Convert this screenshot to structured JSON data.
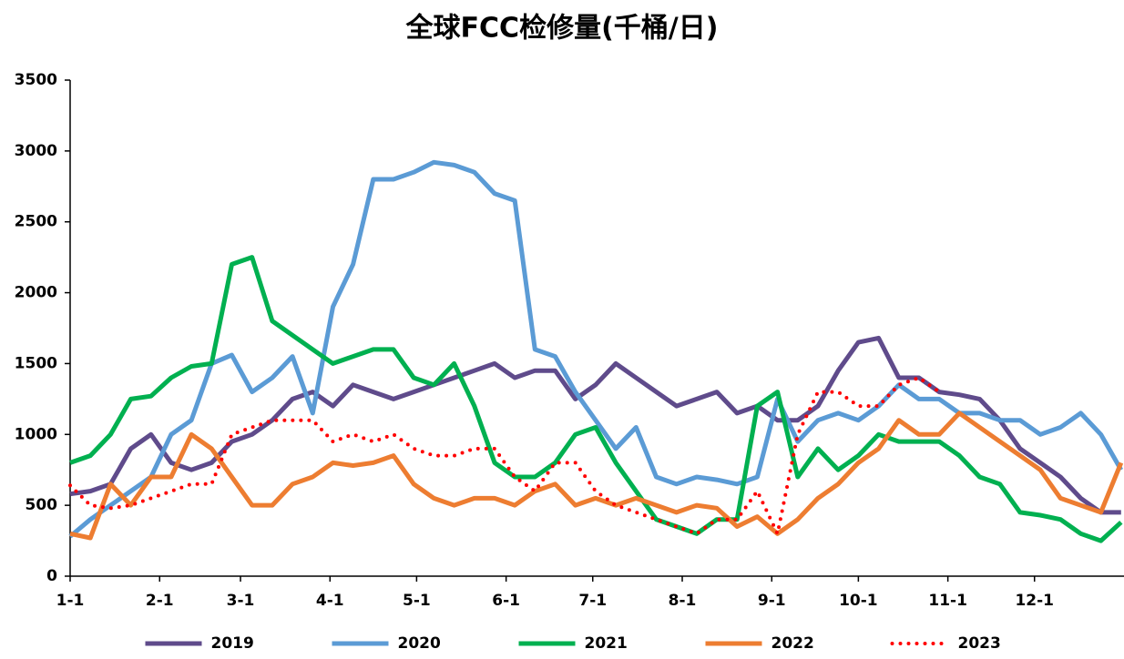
{
  "chart_data": {
    "type": "line",
    "title": "全球FCC检修量(千桶/日)",
    "x": [
      0,
      7,
      14,
      21,
      28,
      35,
      42,
      49,
      56,
      63,
      70,
      77,
      84,
      91,
      98,
      105,
      112,
      119,
      126,
      133,
      140,
      147,
      154,
      161,
      168,
      175,
      182,
      189,
      196,
      203,
      210,
      217,
      224,
      231,
      238,
      245,
      252,
      259,
      266,
      273,
      280,
      287,
      294,
      301,
      308,
      315,
      322,
      329,
      336,
      343,
      350,
      357,
      364
    ],
    "xlim": [
      0,
      365
    ],
    "xticks": [
      {
        "value": 0,
        "label": "1-1"
      },
      {
        "value": 31,
        "label": "2-1"
      },
      {
        "value": 59,
        "label": "3-1"
      },
      {
        "value": 90,
        "label": "4-1"
      },
      {
        "value": 120,
        "label": "5-1"
      },
      {
        "value": 151,
        "label": "6-1"
      },
      {
        "value": 181,
        "label": "7-1"
      },
      {
        "value": 212,
        "label": "8-1"
      },
      {
        "value": 243,
        "label": "9-1"
      },
      {
        "value": 273,
        "label": "10-1"
      },
      {
        "value": 304,
        "label": "11-1"
      },
      {
        "value": 334,
        "label": "12-1"
      }
    ],
    "ylim": [
      0,
      3500
    ],
    "yticks": [
      0,
      500,
      1000,
      1500,
      2000,
      2500,
      3000,
      3500
    ],
    "legend": "bottom",
    "series": [
      {
        "name": "2019",
        "color": "#5f4b8b",
        "style": "solid",
        "values": [
          580,
          600,
          650,
          900,
          1000,
          800,
          750,
          800,
          950,
          1000,
          1100,
          1250,
          1300,
          1200,
          1350,
          1300,
          1250,
          1300,
          1350,
          1400,
          1450,
          1500,
          1400,
          1450,
          1450,
          1250,
          1350,
          1500,
          1400,
          1300,
          1200,
          1250,
          1300,
          1150,
          1200,
          1100,
          1100,
          1200,
          1450,
          1650,
          1680,
          1400,
          1400,
          1300,
          1280,
          1250,
          1100,
          900,
          800,
          700,
          550,
          450,
          450
        ]
      },
      {
        "name": "2020",
        "color": "#5b9bd5",
        "style": "solid",
        "values": [
          280,
          400,
          500,
          600,
          700,
          1000,
          1100,
          1500,
          1560,
          1300,
          1400,
          1550,
          1150,
          1900,
          2200,
          2800,
          2800,
          2850,
          2920,
          2900,
          2850,
          2700,
          2650,
          1600,
          1550,
          1300,
          1100,
          900,
          1050,
          700,
          650,
          700,
          680,
          650,
          700,
          1250,
          950,
          1100,
          1150,
          1100,
          1200,
          1350,
          1250,
          1250,
          1150,
          1150,
          1100,
          1100,
          1000,
          1050,
          1150,
          1000,
          750
        ]
      },
      {
        "name": "2021",
        "color": "#00b050",
        "style": "solid",
        "values": [
          800,
          850,
          1000,
          1250,
          1270,
          1400,
          1480,
          1500,
          2200,
          2250,
          1800,
          1700,
          1600,
          1500,
          1550,
          1600,
          1600,
          1400,
          1350,
          1500,
          1200,
          800,
          700,
          700,
          800,
          1000,
          1050,
          800,
          600,
          400,
          350,
          300,
          400,
          400,
          1200,
          1300,
          700,
          900,
          750,
          850,
          1000,
          950,
          950,
          950,
          850,
          700,
          650,
          450,
          430,
          400,
          300,
          250,
          380
        ]
      },
      {
        "name": "2022",
        "color": "#ed7d31",
        "style": "solid",
        "values": [
          300,
          270,
          650,
          500,
          700,
          700,
          1000,
          900,
          700,
          500,
          500,
          650,
          700,
          800,
          780,
          800,
          850,
          650,
          550,
          500,
          550,
          550,
          500,
          600,
          650,
          500,
          550,
          500,
          550,
          500,
          450,
          500,
          480,
          350,
          420,
          300,
          400,
          550,
          650,
          800,
          900,
          1100,
          1000,
          1000,
          1150,
          1050,
          950,
          850,
          750,
          550,
          500,
          450,
          800
        ]
      },
      {
        "name": "2023",
        "color": "#ff0000",
        "style": "dotted",
        "values": [
          640,
          500,
          480,
          500,
          550,
          600,
          650,
          650,
          1000,
          1050,
          1100,
          1100,
          1100,
          950,
          1000,
          950,
          1000,
          900,
          850,
          850,
          900,
          900,
          700,
          600,
          800,
          800,
          600,
          500,
          450,
          400,
          350,
          300,
          400,
          400,
          600,
          300,
          1000,
          1300,
          1300,
          1200,
          1200,
          1350,
          1400,
          1300,
          null,
          null,
          null,
          null,
          null,
          null,
          null,
          null,
          null
        ]
      }
    ]
  }
}
